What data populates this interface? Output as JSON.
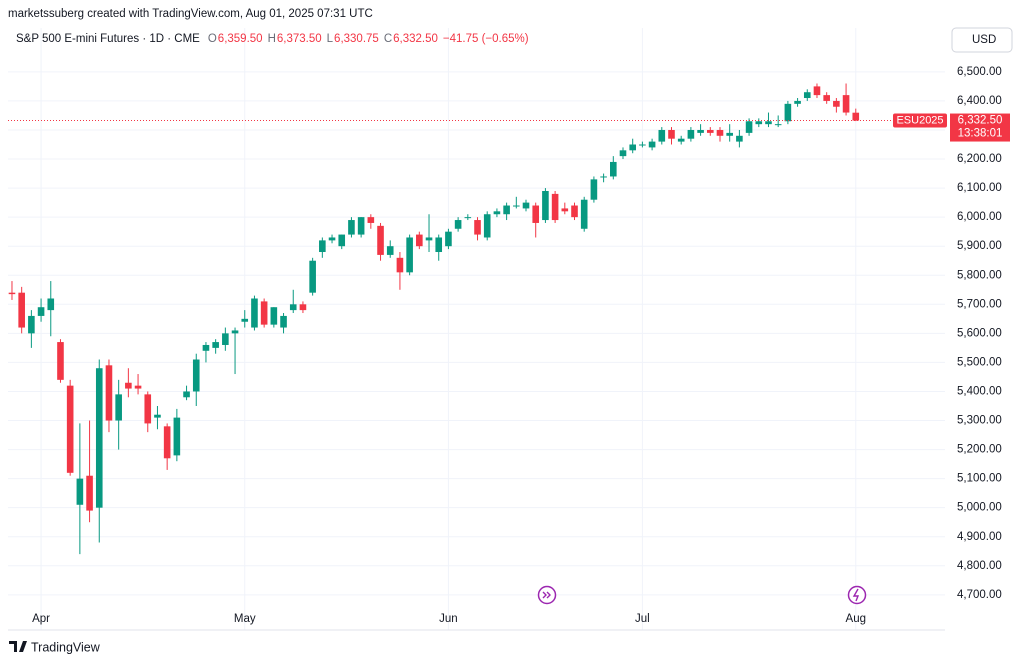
{
  "header": {
    "attribution": "marketssuberg created with TradingView.com, Aug 01, 2025 07:31 UTC",
    "symbol": "S&P 500 E-mini Futures · 1D · CME",
    "ohlc": [
      {
        "key": "O",
        "value": "6,359.50"
      },
      {
        "key": "H",
        "value": "6,373.50"
      },
      {
        "key": "L",
        "value": "6,330.75"
      },
      {
        "key": "C",
        "value": "6,332.50"
      }
    ],
    "change": "−41.75 (−0.65%)"
  },
  "footer": {
    "brand": "TradingView"
  },
  "chart_data": {
    "type": "candlestick",
    "currency": "USD",
    "up_color": "#089981",
    "down_color": "#f23645",
    "grid": true,
    "xlim": [
      -0.41,
      96.2
    ],
    "ylim": [
      4579,
      6651
    ],
    "yticks": [
      {
        "value": 4700,
        "label": "4,700.00"
      },
      {
        "value": 4800,
        "label": "4,800.00"
      },
      {
        "value": 4900,
        "label": "4,900.00"
      },
      {
        "value": 5000,
        "label": "5,000.00"
      },
      {
        "value": 5100,
        "label": "5,100.00"
      },
      {
        "value": 5200,
        "label": "5,200.00"
      },
      {
        "value": 5300,
        "label": "5,300.00"
      },
      {
        "value": 5400,
        "label": "5,400.00"
      },
      {
        "value": 5500,
        "label": "5,500.00"
      },
      {
        "value": 5600,
        "label": "5,600.00"
      },
      {
        "value": 5700,
        "label": "5,700.00"
      },
      {
        "value": 5800,
        "label": "5,800.00"
      },
      {
        "value": 5900,
        "label": "5,900.00"
      },
      {
        "value": 6000,
        "label": "6,000.00"
      },
      {
        "value": 6100,
        "label": "6,100.00"
      },
      {
        "value": 6200,
        "label": "6,200.00"
      },
      {
        "value": 6300,
        "label": "6,300.00"
      },
      {
        "value": 6400,
        "label": "6,400.00"
      },
      {
        "value": 6500,
        "label": "6,500.00"
      }
    ],
    "xticks": [
      {
        "value": 3,
        "label": "Apr"
      },
      {
        "value": 24,
        "label": "May"
      },
      {
        "value": 45,
        "label": "Jun"
      },
      {
        "value": 65,
        "label": "Jul"
      },
      {
        "value": 87,
        "label": "Aug"
      }
    ],
    "open": [
      5740,
      5740,
      5600,
      5660,
      5680,
      5570,
      5420,
      5010,
      5110,
      5000,
      5490,
      5300,
      5430,
      5420,
      5390,
      5310,
      5280,
      5180,
      5380,
      5400,
      5540,
      5550,
      5560,
      5600,
      5640,
      5620,
      5710,
      5630,
      5620,
      5680,
      5700,
      5740,
      5880,
      5920,
      5900,
      5940,
      5940,
      6000,
      5970,
      5870,
      5860,
      5810,
      5940,
      5920,
      5880,
      5900,
      5960,
      6000,
      5990,
      5930,
      6010,
      6010,
      6040,
      6030,
      6040,
      5990,
      6080,
      6030,
      6040,
      5960,
      6060,
      6140,
      6140,
      6210,
      6230,
      6250,
      6240,
      6260,
      6300,
      6260,
      6270,
      6290,
      6300,
      6300,
      6280,
      6260,
      6290,
      6320,
      6320,
      6320,
      6330,
      6390,
      6410,
      6450,
      6420,
      6400,
      6420,
      6359.5
    ],
    "high": [
      5780,
      5760,
      5680,
      5720,
      5780,
      5580,
      5440,
      5290,
      5300,
      5510,
      5510,
      5440,
      5480,
      5460,
      5400,
      5350,
      5290,
      5340,
      5420,
      5530,
      5570,
      5580,
      5620,
      5620,
      5680,
      5730,
      5720,
      5690,
      5670,
      5750,
      5710,
      5860,
      5930,
      5940,
      5940,
      6000,
      6000,
      6010,
      5980,
      5920,
      5880,
      5940,
      5950,
      6010,
      5940,
      5960,
      6000,
      6010,
      6000,
      6020,
      6030,
      6050,
      6070,
      6060,
      6050,
      6100,
      6090,
      6050,
      6050,
      6070,
      6140,
      6150,
      6210,
      6240,
      6270,
      6260,
      6270,
      6310,
      6310,
      6280,
      6310,
      6320,
      6310,
      6310,
      6320,
      6300,
      6340,
      6340,
      6360,
      6350,
      6400,
      6410,
      6440,
      6460,
      6430,
      6410,
      6460,
      6373.5
    ],
    "low": [
      5715,
      5600,
      5550,
      5640,
      5590,
      5430,
      5110,
      4840,
      4950,
      4880,
      5260,
      5200,
      5380,
      5390,
      5260,
      5270,
      5130,
      5160,
      5370,
      5350,
      5500,
      5530,
      5540,
      5460,
      5620,
      5610,
      5620,
      5620,
      5600,
      5670,
      5670,
      5730,
      5860,
      5910,
      5890,
      5930,
      5930,
      5960,
      5850,
      5860,
      5750,
      5800,
      5890,
      5880,
      5850,
      5890,
      5950,
      5990,
      5920,
      5920,
      6000,
      5990,
      6030,
      6020,
      5930,
      5980,
      5980,
      6010,
      5990,
      5950,
      6050,
      6120,
      6130,
      6200,
      6220,
      6240,
      6230,
      6250,
      6250,
      6250,
      6260,
      6280,
      6280,
      6260,
      6260,
      6240,
      6280,
      6310,
      6310,
      6310,
      6320,
      6380,
      6400,
      6410,
      6390,
      6360,
      6350,
      6330.75
    ],
    "close": [
      5735,
      5620,
      5660,
      5690,
      5720,
      5440,
      5120,
      5100,
      4990,
      5480,
      5300,
      5390,
      5410,
      5410,
      5290,
      5320,
      5170,
      5310,
      5400,
      5510,
      5560,
      5570,
      5600,
      5610,
      5650,
      5720,
      5630,
      5690,
      5660,
      5700,
      5680,
      5850,
      5920,
      5930,
      5940,
      5990,
      6000,
      5980,
      5870,
      5900,
      5810,
      5930,
      5900,
      5930,
      5930,
      5950,
      5990,
      6000,
      5940,
      6010,
      6020,
      6040,
      6040,
      6050,
      5980,
      6090,
      5990,
      6020,
      6000,
      6060,
      6130,
      6140,
      6190,
      6230,
      6250,
      6250,
      6260,
      6300,
      6270,
      6270,
      6300,
      6300,
      6290,
      6280,
      6290,
      6280,
      6330,
      6330,
      6330,
      6320,
      6390,
      6400,
      6430,
      6420,
      6400,
      6380,
      6360,
      6332.5
    ],
    "last_price": {
      "value": 6332.5,
      "label": "6,332.50"
    },
    "last_symbol": "ESU2025",
    "countdown": "13:38:01"
  }
}
